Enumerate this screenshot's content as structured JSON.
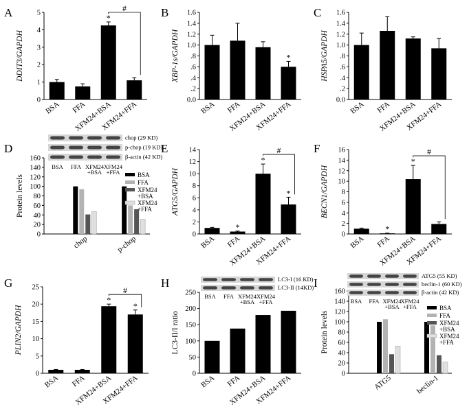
{
  "chart_data": [
    {
      "type": "bar",
      "panel": "A",
      "ylabel": "DDIT3/GAPDH",
      "categories": [
        "BSA",
        "FFA",
        "XFM24+BSA",
        "XFM24+FFA"
      ],
      "values": [
        1.0,
        0.75,
        4.25,
        1.1
      ],
      "errors": [
        0.15,
        0.15,
        0.2,
        0.15
      ],
      "ylim": [
        0,
        5
      ],
      "yticks": [
        "0",
        "1",
        "2",
        "3",
        "4",
        "5"
      ],
      "star": [
        false,
        false,
        true,
        false
      ],
      "bracket": {
        "from": 2,
        "to": 3,
        "label": "#"
      }
    },
    {
      "type": "bar",
      "panel": "B",
      "ylabel": "XBP-1s/GAPDH",
      "categories": [
        "BSA",
        "FFA",
        "XFM24+BSA",
        "XFM24+FFA"
      ],
      "values": [
        1.0,
        1.08,
        0.96,
        0.6
      ],
      "errors": [
        0.18,
        0.32,
        0.1,
        0.1
      ],
      "ylim": [
        0,
        1.6
      ],
      "yticks": [
        "0.0",
        ".2",
        ".4",
        ".6",
        ".8",
        "1.0",
        "1.2",
        "1.4",
        "1.6"
      ],
      "star": [
        false,
        false,
        false,
        true
      ]
    },
    {
      "type": "bar",
      "panel": "C",
      "ylabel": "HSPA5/GAPDH",
      "categories": [
        "BSA",
        "FFA",
        "XFM24+BSA",
        "XFM24+FFA"
      ],
      "values": [
        1.0,
        1.26,
        1.12,
        0.94
      ],
      "errors": [
        0.22,
        0.26,
        0.03,
        0.18
      ],
      "ylim": [
        0,
        1.6
      ],
      "yticks": [
        "0.0",
        ".2",
        ".4",
        ".6",
        ".8",
        "1.0",
        "1.2",
        "1.4",
        "1.6"
      ],
      "star": [
        false,
        false,
        false,
        false
      ]
    },
    {
      "type": "bar",
      "panel": "D",
      "ylabel": "Protein levels",
      "blot_labels": [
        "chop (29 KD)",
        "p-chop (19 KD)",
        "β-actin (42 KD)"
      ],
      "lane_labels": [
        "BSA",
        "FFA",
        "XFM24\n+BSA",
        "XFM24\n+FFA"
      ],
      "categories": [
        "chop",
        "p-chop"
      ],
      "series": [
        {
          "name": "BSA",
          "color": "#000000",
          "values": [
            100,
            100
          ]
        },
        {
          "name": "FFA",
          "color": "#b3b3b3",
          "values": [
            94,
            60
          ]
        },
        {
          "name": "XFM24\n+BSA",
          "color": "#555555",
          "values": [
            41,
            52
          ]
        },
        {
          "name": "XFM24\n+FFA",
          "color": "#e0e0e0",
          "values": [
            47,
            31
          ]
        }
      ],
      "ylim": [
        0,
        160
      ],
      "yticks": [
        "0",
        "20",
        "40",
        "60",
        "80",
        "100",
        "120",
        "140",
        "160"
      ]
    },
    {
      "type": "bar",
      "panel": "E",
      "ylabel": "ATG5/GAPDH",
      "categories": [
        "BSA",
        "FFA",
        "XFM24+BSA",
        "XFM24+FFA"
      ],
      "values": [
        1.0,
        0.4,
        10.0,
        4.9
      ],
      "errors": [
        0.1,
        0.08,
        1.6,
        1.2
      ],
      "ylim": [
        0,
        14
      ],
      "yticks": [
        "0",
        "2",
        "4",
        "6",
        "8",
        "10",
        "12",
        "14"
      ],
      "star": [
        false,
        true,
        true,
        true
      ],
      "bracket": {
        "from": 2,
        "to": 3,
        "label": "#"
      }
    },
    {
      "type": "bar",
      "panel": "F",
      "ylabel": "BECN1/GAPDH",
      "categories": [
        "BSA",
        "FFA",
        "XFM24+BSA",
        "XFM24+FFA"
      ],
      "values": [
        1.0,
        0.12,
        10.4,
        1.9
      ],
      "errors": [
        0.12,
        0.05,
        2.6,
        0.4
      ],
      "ylim": [
        0,
        16
      ],
      "yticks": [
        "0",
        "2",
        "4",
        "6",
        "8",
        "10",
        "12",
        "14",
        "16"
      ],
      "star": [
        false,
        true,
        true,
        false
      ],
      "bracket": {
        "from": 2,
        "to": 3,
        "label": "#"
      }
    },
    {
      "type": "bar",
      "panel": "G",
      "ylabel": "PLIN2/GAPDH",
      "categories": [
        "BSA",
        "FFA",
        "XFM24+BSA",
        "XFM24+FFA"
      ],
      "values": [
        1.0,
        1.0,
        19.4,
        17.0
      ],
      "errors": [
        0.1,
        0.1,
        0.6,
        1.3
      ],
      "ylim": [
        0,
        25
      ],
      "yticks": [
        "0",
        "5",
        "10",
        "15",
        "20",
        "25"
      ],
      "star": [
        false,
        false,
        true,
        true
      ],
      "bracket": {
        "from": 2,
        "to": 3,
        "label": "#"
      }
    },
    {
      "type": "bar",
      "panel": "H",
      "ylabel": "LC3-II/I ratio",
      "blot_labels": [
        "LC3-I (16 KD)",
        "LC3-II (14KD)"
      ],
      "lane_labels": [
        "BSA",
        "FFA",
        "XFM24\n+BSA",
        "XFM24\n+FFA"
      ],
      "categories": [
        "BSA",
        "FFA",
        "XFM24+BSA",
        "XFM24+FFA"
      ],
      "values": [
        100,
        138,
        180,
        193
      ],
      "ylim": [
        0,
        250
      ],
      "yticks": [
        "0",
        "50",
        "100",
        "150",
        "200",
        "250"
      ]
    },
    {
      "type": "bar",
      "panel": "I",
      "ylabel": "Protein levels",
      "blot_labels": [
        "ATG5 (55 KD)",
        "beclin-1 (60 KD)",
        "β-actin (42 KD)"
      ],
      "lane_labels": [
        "BSA",
        "FFA",
        "XFM24\n+BSA",
        "XFM24\n+FFA"
      ],
      "categories": [
        "ATG5",
        "beclin-1"
      ],
      "series": [
        {
          "name": "BSA",
          "color": "#000000",
          "values": [
            100,
            100
          ]
        },
        {
          "name": "FFA",
          "color": "#b3b3b3",
          "values": [
            105,
            93
          ]
        },
        {
          "name": "XFM24\n+BSA",
          "color": "#555555",
          "values": [
            37,
            35
          ]
        },
        {
          "name": "XFM24\n+FFA",
          "color": "#e0e0e0",
          "values": [
            53,
            22
          ]
        }
      ],
      "ylim": [
        0,
        160
      ],
      "yticks": [
        "0",
        "20",
        "40",
        "60",
        "80",
        "100",
        "120",
        "140",
        "160"
      ]
    }
  ]
}
